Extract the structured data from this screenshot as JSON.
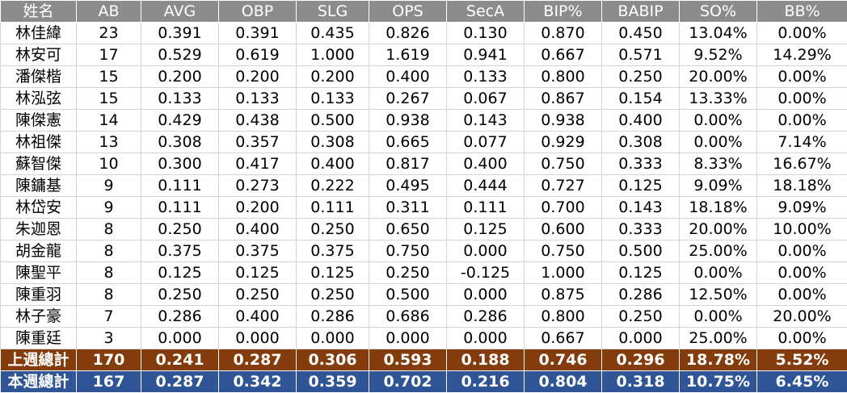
{
  "table": {
    "headers": [
      "姓名",
      "AB",
      "AVG",
      "OBP",
      "SLG",
      "OPS",
      "SecA",
      "BIP%",
      "BABIP",
      "SO%",
      "BB%"
    ],
    "rows": [
      [
        "林佳緯",
        "23",
        "0.391",
        "0.391",
        "0.435",
        "0.826",
        "0.130",
        "0.870",
        "0.450",
        "13.04%",
        "0.00%"
      ],
      [
        "林安可",
        "17",
        "0.529",
        "0.619",
        "1.000",
        "1.619",
        "0.941",
        "0.667",
        "0.571",
        "9.52%",
        "14.29%"
      ],
      [
        "潘傑楷",
        "15",
        "0.200",
        "0.200",
        "0.200",
        "0.400",
        "0.133",
        "0.800",
        "0.250",
        "20.00%",
        "0.00%"
      ],
      [
        "林泓弦",
        "15",
        "0.133",
        "0.133",
        "0.133",
        "0.267",
        "0.067",
        "0.867",
        "0.154",
        "13.33%",
        "0.00%"
      ],
      [
        "陳傑憲",
        "14",
        "0.429",
        "0.438",
        "0.500",
        "0.938",
        "0.143",
        "0.938",
        "0.400",
        "0.00%",
        "0.00%"
      ],
      [
        "林祖傑",
        "13",
        "0.308",
        "0.357",
        "0.308",
        "0.665",
        "0.077",
        "0.929",
        "0.308",
        "0.00%",
        "7.14%"
      ],
      [
        "蘇智傑",
        "10",
        "0.300",
        "0.417",
        "0.400",
        "0.817",
        "0.400",
        "0.750",
        "0.333",
        "8.33%",
        "16.67%"
      ],
      [
        "陳鏞基",
        "9",
        "0.111",
        "0.273",
        "0.222",
        "0.495",
        "0.444",
        "0.727",
        "0.125",
        "9.09%",
        "18.18%"
      ],
      [
        "林岱安",
        "9",
        "0.111",
        "0.200",
        "0.111",
        "0.311",
        "0.111",
        "0.700",
        "0.143",
        "18.18%",
        "9.09%"
      ],
      [
        "朱迦恩",
        "8",
        "0.250",
        "0.400",
        "0.250",
        "0.650",
        "0.125",
        "0.600",
        "0.333",
        "20.00%",
        "10.00%"
      ],
      [
        "胡金龍",
        "8",
        "0.375",
        "0.375",
        "0.375",
        "0.750",
        "0.000",
        "0.750",
        "0.500",
        "25.00%",
        "0.00%"
      ],
      [
        "陳聖平",
        "8",
        "0.125",
        "0.125",
        "0.125",
        "0.250",
        "-0.125",
        "1.000",
        "0.125",
        "0.00%",
        "0.00%"
      ],
      [
        "陳重羽",
        "8",
        "0.250",
        "0.250",
        "0.250",
        "0.500",
        "0.000",
        "0.875",
        "0.286",
        "12.50%",
        "0.00%"
      ],
      [
        "林子豪",
        "7",
        "0.286",
        "0.400",
        "0.286",
        "0.686",
        "0.286",
        "0.800",
        "0.250",
        "0.00%",
        "20.00%"
      ],
      [
        "陳重廷",
        "3",
        "0.000",
        "0.000",
        "0.000",
        "0.000",
        "0.000",
        "0.667",
        "0.000",
        "25.00%",
        "0.00%"
      ]
    ],
    "summary": {
      "last_week": [
        "上週總計",
        "170",
        "0.241",
        "0.287",
        "0.306",
        "0.593",
        "0.188",
        "0.746",
        "0.296",
        "18.78%",
        "5.52%"
      ],
      "this_week": [
        "本週總計",
        "167",
        "0.287",
        "0.342",
        "0.359",
        "0.702",
        "0.216",
        "0.804",
        "0.318",
        "10.75%",
        "6.45%"
      ]
    }
  },
  "colors": {
    "header_bg": "#8c8c8c",
    "last_week_bg": "#843c0c",
    "this_week_bg": "#2f5597"
  }
}
